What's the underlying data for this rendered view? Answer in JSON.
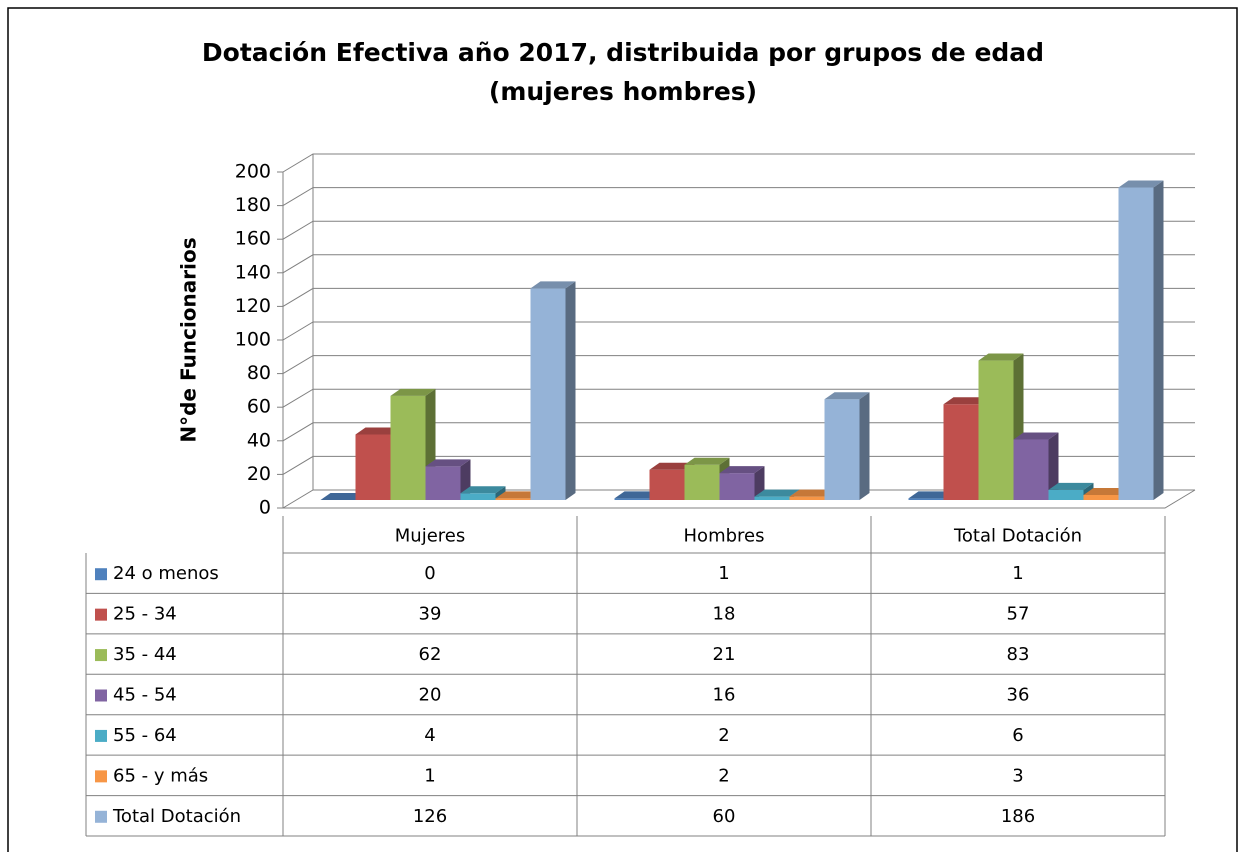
{
  "chart_data": {
    "type": "bar3d",
    "title": "Dotación Efectiva año 2017, distribuida por grupos de edad",
    "subtitle": "(mujeres hombres)",
    "ylabel": "N°de Funcionarios",
    "categories": [
      "Mujeres",
      "Hombres",
      "Total Dotación"
    ],
    "ylim": [
      0,
      200
    ],
    "yticks": [
      0,
      20,
      40,
      60,
      80,
      100,
      120,
      140,
      160,
      180,
      200
    ],
    "grid": true,
    "series": [
      {
        "name": "24 o menos",
        "color": "#4f81bd",
        "values": [
          0,
          1,
          1
        ]
      },
      {
        "name": "25 - 34",
        "color": "#c0504d",
        "values": [
          39,
          18,
          57
        ]
      },
      {
        "name": "35 - 44",
        "color": "#9bbb59",
        "values": [
          62,
          21,
          83
        ]
      },
      {
        "name": "45 - 54",
        "color": "#8064a2",
        "values": [
          20,
          16,
          36
        ]
      },
      {
        "name": "55 - 64",
        "color": "#4bacc6",
        "values": [
          4,
          2,
          6
        ]
      },
      {
        "name": "65 - y más",
        "color": "#f79646",
        "values": [
          1,
          2,
          3
        ]
      },
      {
        "name": "Total Dotación",
        "color": "#95b3d7",
        "values": [
          126,
          60,
          186
        ]
      }
    ]
  }
}
